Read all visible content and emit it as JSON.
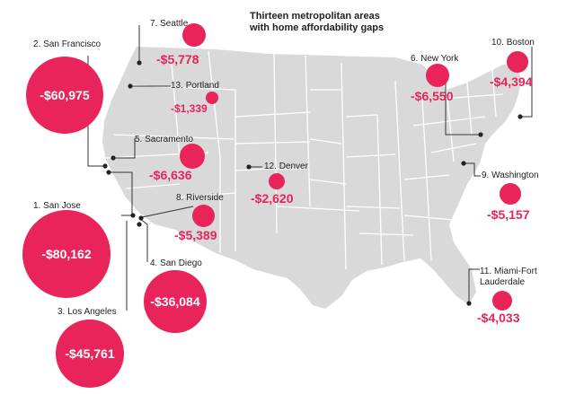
{
  "title": [
    "Thirteen metropolitan areas",
    "with home affordability gaps"
  ],
  "colors": {
    "accent": "#e8245a",
    "land": "#d9d9d9",
    "border": "#ffffff",
    "leader": "#333333"
  },
  "metros": [
    {
      "rank": "7.",
      "name": "Seattle",
      "value": "-$5,778",
      "gap": -5778
    },
    {
      "rank": "2.",
      "name": "San Francisco",
      "value": "-$60,975",
      "gap": -60975
    },
    {
      "rank": "13.",
      "name": "Portland",
      "value": "-$1,339",
      "gap": -1339
    },
    {
      "rank": "5.",
      "name": "Sacramento",
      "value": "-$6,636",
      "gap": -6636
    },
    {
      "rank": "1.",
      "name": "San Jose",
      "value": "-$80,162",
      "gap": -80162
    },
    {
      "rank": "8.",
      "name": "Riverside",
      "value": "-$5,389",
      "gap": -5389
    },
    {
      "rank": "4.",
      "name": "San Diego",
      "value": "-$36,084",
      "gap": -36084
    },
    {
      "rank": "3.",
      "name": "Los Angeles",
      "value": "-$45,761",
      "gap": -45761
    },
    {
      "rank": "12.",
      "name": "Denver",
      "value": "-$2,620",
      "gap": -2620
    },
    {
      "rank": "6.",
      "name": "New York",
      "value": "-$6,550",
      "gap": -6550
    },
    {
      "rank": "10.",
      "name": "Boston",
      "value": "-$4,394",
      "gap": -4394
    },
    {
      "rank": "9.",
      "name": "Washington",
      "value": "-$5,157",
      "gap": -5157
    },
    {
      "rank": "11.",
      "name": "Miami-Fort Lauderdale",
      "value": "-$4,033",
      "gap": -4033
    }
  ]
}
